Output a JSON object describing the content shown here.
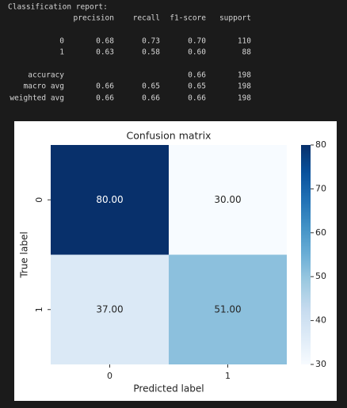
{
  "report": {
    "title": "Classification report:",
    "columns": [
      "precision",
      "recall",
      "f1-score",
      "support"
    ],
    "rows": [
      [
        "0",
        "0.68",
        "0.73",
        "0.70",
        "110"
      ],
      [
        "1",
        "0.63",
        "0.58",
        "0.60",
        "88"
      ],
      [
        "accuracy",
        null,
        null,
        "0.66",
        "198"
      ],
      [
        "macro avg",
        "0.66",
        "0.65",
        "0.65",
        "198"
      ],
      [
        "weighted avg",
        "0.66",
        "0.66",
        "0.66",
        "198"
      ]
    ]
  },
  "chart_data": {
    "type": "heatmap",
    "title": "Confusion matrix",
    "xlabel": "Predicted label",
    "ylabel": "True label",
    "x_categories": [
      "0",
      "1"
    ],
    "y_categories": [
      "0",
      "1"
    ],
    "values": [
      [
        80,
        30
      ],
      [
        37,
        51
      ]
    ],
    "value_labels": [
      [
        "80.00",
        "30.00"
      ],
      [
        "37.00",
        "51.00"
      ]
    ],
    "colormap": "Blues",
    "clim": [
      30,
      80
    ],
    "cticks": [
      30,
      40,
      50,
      60,
      70,
      80
    ]
  }
}
